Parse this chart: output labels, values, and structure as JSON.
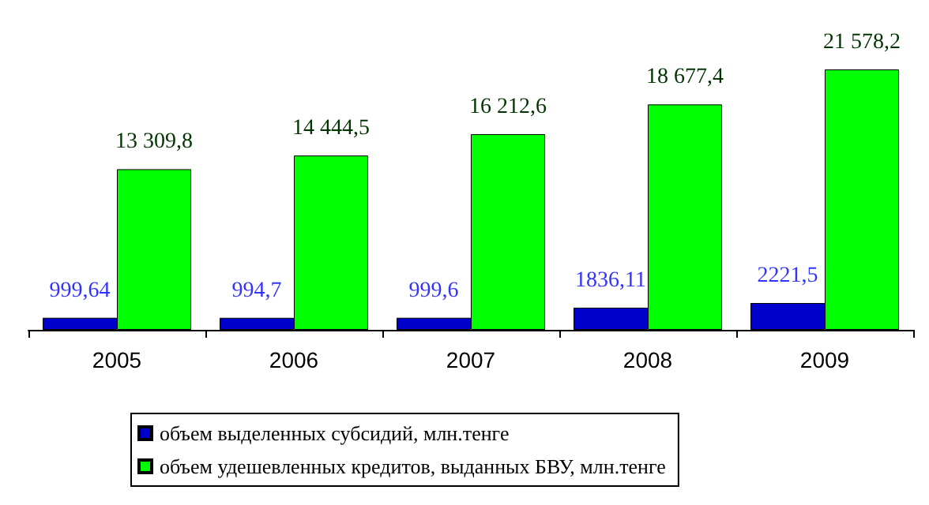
{
  "chart_data": {
    "type": "bar",
    "categories": [
      "2005",
      "2006",
      "2007",
      "2008",
      "2009"
    ],
    "series": [
      {
        "name": "объем выделенных субсидий, млн.тенге",
        "color": "#0000cc",
        "values": [
          999.64,
          994.7,
          999.6,
          1836.11,
          2221.5
        ],
        "value_labels": [
          "999,64",
          "994,7",
          "999,6",
          "1836,11",
          "2221,5"
        ]
      },
      {
        "name": "объем удешевленных кредитов, выданных БВУ, млн.тенге",
        "color": "#00ff00",
        "values": [
          13309.8,
          14444.5,
          16212.6,
          18677.4,
          21578.2
        ],
        "value_labels": [
          "13 309,8",
          "14 444,5",
          "16 212,6",
          "18 677,4",
          "21 578,2"
        ]
      }
    ],
    "legend": "bottom",
    "grid": false
  }
}
